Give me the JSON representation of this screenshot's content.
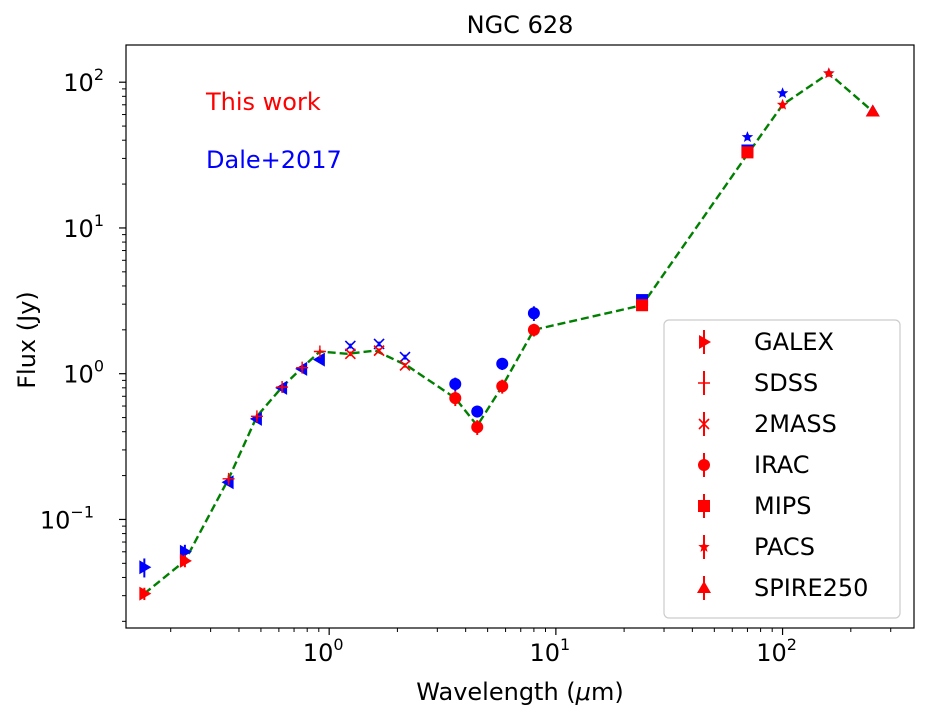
{
  "chart_data": {
    "type": "scatter",
    "title": "NGC 628",
    "xlabel": "Wavelength (μm)",
    "ylabel": "Flux (Jy)",
    "x_scale": "log",
    "y_scale": "log",
    "xlim": [
      0.127,
      380
    ],
    "ylim": [
      0.018,
      180
    ],
    "x_ticks": [
      {
        "value": 1,
        "base": "10",
        "exp": "0"
      },
      {
        "value": 10,
        "base": "10",
        "exp": "1"
      },
      {
        "value": 100,
        "base": "10",
        "exp": "2"
      }
    ],
    "y_ticks": [
      {
        "value": 0.1,
        "base": "10",
        "exp": "−1"
      },
      {
        "value": 1,
        "base": "10",
        "exp": "0"
      },
      {
        "value": 10,
        "base": "10",
        "exp": "1"
      },
      {
        "value": 100,
        "base": "10",
        "exp": "2"
      }
    ],
    "annotations": [
      {
        "text": "This work",
        "color": "#ff0000"
      },
      {
        "text": "Dale+2017",
        "color": "#0000ff"
      }
    ],
    "model_line": {
      "color": "#008000",
      "style": "dashed",
      "points": [
        [
          0.153,
          0.031
        ],
        [
          0.231,
          0.052
        ],
        [
          0.36,
          0.19
        ],
        [
          0.48,
          0.51
        ],
        [
          0.62,
          0.81
        ],
        [
          0.76,
          1.1
        ],
        [
          0.91,
          1.42
        ],
        [
          1.2,
          1.37
        ],
        [
          1.6,
          1.44
        ],
        [
          2.2,
          1.14
        ],
        [
          3.6,
          0.68
        ],
        [
          4.5,
          0.44
        ],
        [
          5.8,
          0.82
        ],
        [
          8.0,
          2.0
        ],
        [
          24,
          2.95
        ],
        [
          70,
          32
        ],
        [
          100,
          70
        ],
        [
          160,
          115
        ],
        [
          250,
          63
        ]
      ]
    },
    "series": [
      {
        "name": "GALEX",
        "marker": "triangle-right",
        "color": "#ff0000",
        "points": [
          {
            "x": 0.153,
            "y": 0.031,
            "err": 0.003
          },
          {
            "x": 0.231,
            "y": 0.052,
            "err": 0.005
          }
        ]
      },
      {
        "name": "SDSS",
        "marker": "thin-plus",
        "color": "#ff0000",
        "points": [
          {
            "x": 0.36,
            "y": 0.19,
            "err": 0.01
          },
          {
            "x": 0.48,
            "y": 0.51,
            "err": 0.02
          },
          {
            "x": 0.62,
            "y": 0.81,
            "err": 0.03
          },
          {
            "x": 0.76,
            "y": 1.1,
            "err": 0.04
          },
          {
            "x": 0.91,
            "y": 1.42,
            "err": 0.05
          }
        ]
      },
      {
        "name": "2MASS",
        "marker": "x",
        "color": "#ff0000",
        "points": [
          {
            "x": 1.24,
            "y": 1.37,
            "err": 0.05
          },
          {
            "x": 1.66,
            "y": 1.44,
            "err": 0.05
          },
          {
            "x": 2.16,
            "y": 1.14,
            "err": 0.04
          }
        ]
      },
      {
        "name": "IRAC",
        "marker": "circle",
        "color": "#ff0000",
        "points": [
          {
            "x": 3.6,
            "y": 0.68,
            "err": 0.08
          },
          {
            "x": 4.5,
            "y": 0.43,
            "err": 0.05
          },
          {
            "x": 5.8,
            "y": 0.82,
            "err": 0.09
          },
          {
            "x": 8.0,
            "y": 2.0,
            "err": 0.2
          }
        ]
      },
      {
        "name": "MIPS",
        "marker": "square",
        "color": "#ff0000",
        "points": [
          {
            "x": 24,
            "y": 2.95,
            "err": 0.15
          },
          {
            "x": 70,
            "y": 33,
            "err": 2
          }
        ]
      },
      {
        "name": "PACS",
        "marker": "star",
        "color": "#ff0000",
        "points": [
          {
            "x": 100,
            "y": 70,
            "err": 4
          },
          {
            "x": 160,
            "y": 115,
            "err": 6
          }
        ]
      },
      {
        "name": "SPIRE250",
        "marker": "triangle-up",
        "color": "#ff0000",
        "points": [
          {
            "x": 250,
            "y": 63,
            "err": 3
          }
        ]
      },
      {
        "marker": "triangle-right",
        "color": "#0000ff",
        "points": [
          {
            "x": 0.153,
            "y": 0.047,
            "err": 0.007
          },
          {
            "x": 0.231,
            "y": 0.06,
            "err": 0.007
          }
        ]
      },
      {
        "marker": "triangle-left",
        "color": "#0000ff",
        "points": [
          {
            "x": 0.36,
            "y": 0.18,
            "err": 0.01
          },
          {
            "x": 0.48,
            "y": 0.49,
            "err": 0.03
          },
          {
            "x": 0.62,
            "y": 0.8,
            "err": 0.04
          },
          {
            "x": 0.76,
            "y": 1.08,
            "err": 0.05
          },
          {
            "x": 0.91,
            "y": 1.25,
            "err": 0.05
          }
        ]
      },
      {
        "marker": "x",
        "color": "#0000ff",
        "points": [
          {
            "x": 1.24,
            "y": 1.55,
            "err": 0.06
          },
          {
            "x": 1.66,
            "y": 1.6,
            "err": 0.06
          },
          {
            "x": 2.16,
            "y": 1.3,
            "err": 0.05
          }
        ]
      },
      {
        "marker": "circle",
        "color": "#0000ff",
        "points": [
          {
            "x": 3.6,
            "y": 0.85,
            "err": 0.09
          },
          {
            "x": 4.5,
            "y": 0.55,
            "err": 0.05
          },
          {
            "x": 5.8,
            "y": 1.17,
            "err": 0.11
          },
          {
            "x": 8.0,
            "y": 2.6,
            "err": 0.3
          }
        ]
      },
      {
        "marker": "square",
        "color": "#0000ff",
        "points": [
          {
            "x": 24,
            "y": 3.2,
            "err": 0.2
          },
          {
            "x": 70,
            "y": 34,
            "err": 2
          }
        ]
      },
      {
        "marker": "star",
        "color": "#0000ff",
        "points": [
          {
            "x": 70,
            "y": 42,
            "err": 2
          },
          {
            "x": 100,
            "y": 84,
            "err": 4
          },
          {
            "x": 160,
            "y": 115,
            "err": 5
          }
        ]
      },
      {
        "marker": "triangle-up",
        "color": "#0000ff",
        "points": [
          {
            "x": 250,
            "y": 63,
            "err": 3
          }
        ]
      }
    ],
    "legend": {
      "location": "lower-right"
    }
  }
}
